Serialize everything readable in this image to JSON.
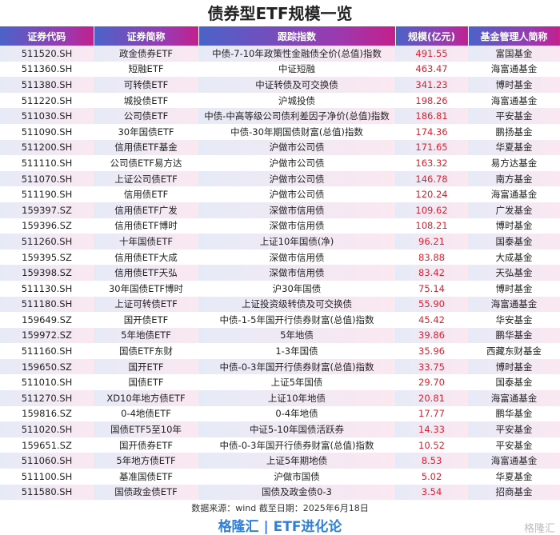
{
  "title": "债券型ETF规模一览",
  "headers": [
    "证券代码",
    "证券简称",
    "跟踪指数",
    "规模(亿元)",
    "基金管理人简称"
  ],
  "rows": [
    [
      "511520.SH",
      "政金债券ETF",
      "中债-7-10年政策性金融债全价(总值)指数",
      "491.55",
      "富国基金"
    ],
    [
      "511360.SH",
      "短融ETF",
      "中证短融",
      "463.47",
      "海富通基金"
    ],
    [
      "511380.SH",
      "可转债ETF",
      "中证转债及可交换债",
      "341.23",
      "博时基金"
    ],
    [
      "511220.SH",
      "城投债ETF",
      "沪城投债",
      "198.26",
      "海富通基金"
    ],
    [
      "511030.SH",
      "公司债ETF",
      "中债-中高等级公司债利差因子净价(总值)指数",
      "186.81",
      "平安基金"
    ],
    [
      "511090.SH",
      "30年国债ETF",
      "中债-30年期国债财富(总值)指数",
      "174.36",
      "鹏扬基金"
    ],
    [
      "511200.SH",
      "信用债ETF基金",
      "沪做市公司债",
      "171.65",
      "华夏基金"
    ],
    [
      "511110.SH",
      "公司债ETF易方达",
      "沪做市公司债",
      "163.32",
      "易方达基金"
    ],
    [
      "511070.SH",
      "上证公司债ETF",
      "沪做市公司债",
      "146.78",
      "南方基金"
    ],
    [
      "511190.SH",
      "信用债ETF",
      "沪做市公司债",
      "120.24",
      "海富通基金"
    ],
    [
      "159397.SZ",
      "信用债ETF广发",
      "深做市信用债",
      "109.62",
      "广发基金"
    ],
    [
      "159396.SZ",
      "信用债ETF博时",
      "深做市信用债",
      "108.21",
      "博时基金"
    ],
    [
      "511260.SH",
      "十年国债ETF",
      "上证10年国债(净)",
      "96.21",
      "国泰基金"
    ],
    [
      "159395.SZ",
      "信用债ETF大成",
      "深做市信用债",
      "83.88",
      "大成基金"
    ],
    [
      "159398.SZ",
      "信用债ETF天弘",
      "深做市信用债",
      "83.42",
      "天弘基金"
    ],
    [
      "511130.SH",
      "30年国债ETF博时",
      "沪30年国债",
      "75.14",
      "博时基金"
    ],
    [
      "511180.SH",
      "上证可转债ETF",
      "上证投资级转债及可交换债",
      "55.90",
      "海富通基金"
    ],
    [
      "159649.SZ",
      "国开债ETF",
      "中债-1-5年国开行债券财富(总值)指数",
      "45.42",
      "华安基金"
    ],
    [
      "159972.SZ",
      "5年地债ETF",
      "5年地债",
      "39.86",
      "鹏华基金"
    ],
    [
      "511160.SH",
      "国债ETF东财",
      "1-3年国债",
      "35.96",
      "西藏东财基金"
    ],
    [
      "159650.SZ",
      "国开ETF",
      "中债-0-3年国开行债券财富(总值)指数",
      "33.75",
      "博时基金"
    ],
    [
      "511010.SH",
      "国债ETF",
      "上证5年国债",
      "29.70",
      "国泰基金"
    ],
    [
      "511270.SH",
      "XD10年地方债ETF",
      "上证10年地债",
      "20.81",
      "海富通基金"
    ],
    [
      "159816.SZ",
      "0-4地债ETF",
      "0-4年地债",
      "17.77",
      "鹏华基金"
    ],
    [
      "511020.SH",
      "国债ETF5至10年",
      "中证5-10年国债活跃券",
      "14.33",
      "平安基金"
    ],
    [
      "159651.SZ",
      "国开债券ETF",
      "中债-0-3年国开行债券财富(总值)指数",
      "10.52",
      "平安基金"
    ],
    [
      "511060.SH",
      "5年地方债ETF",
      "上证5年期地债",
      "8.53",
      "海富通基金"
    ],
    [
      "511100.SH",
      "基准国债ETF",
      "沪做市国债",
      "5.02",
      "华夏基金"
    ],
    [
      "511580.SH",
      "国债政金债ETF",
      "国债及政金债0-3",
      "3.54",
      "招商基金"
    ]
  ],
  "source": "数据来源：wind  截至日期：2025年6月18日",
  "brand": "格隆汇 | ETF进化论",
  "watermark": "格隆汇",
  "colors": {
    "value": "#e0202f",
    "brand": "#2f7fd8",
    "header_start": "#4b63c9",
    "header_end": "#c3208c"
  }
}
